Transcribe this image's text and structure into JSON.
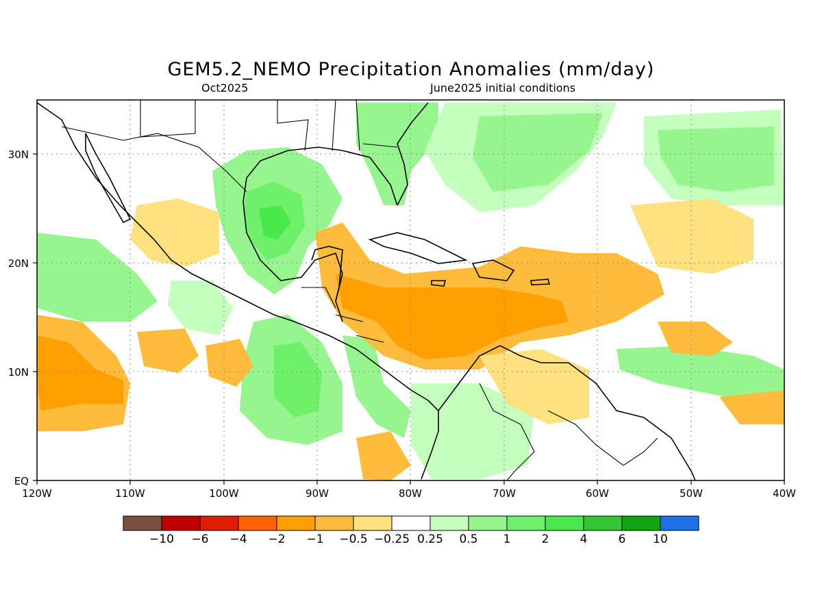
{
  "header": {
    "title": "GEM5.2_NEMO Precipitation Anomalies (mm/day)",
    "subtitle_left": "Oct2025",
    "subtitle_right": "June2025 initial conditions"
  },
  "axes": {
    "lon_labels": [
      "120W",
      "110W",
      "100W",
      "90W",
      "80W",
      "70W",
      "60W",
      "50W",
      "40W"
    ],
    "lat_labels": [
      "EQ",
      "10N",
      "20N",
      "30N"
    ]
  },
  "colorbar": {
    "colors": [
      "#7a4f40",
      "#c00000",
      "#e01e00",
      "#ff6400",
      "#ff9f00",
      "#ffbb3c",
      "#ffe17f",
      "#ffffff",
      "#c5ffbd",
      "#96f58e",
      "#6ef06b",
      "#4be84b",
      "#33c833",
      "#13a413",
      "#1f6fe8"
    ],
    "labels": [
      "-10",
      "-6",
      "-4",
      "-2",
      "-1",
      "-0.5",
      "-0.25",
      "0.25",
      "0.5",
      "1",
      "2",
      "4",
      "6",
      "10"
    ]
  },
  "colors": {
    "wet_light": "#c5ffbd",
    "wet_mid": "#96f58e",
    "wet_strong": "#6ef06b",
    "wet_vstrong": "#4be84b",
    "dry_light": "#ffe17f",
    "dry_mid": "#ffbb3c",
    "dry_strong": "#ff9f00"
  }
}
